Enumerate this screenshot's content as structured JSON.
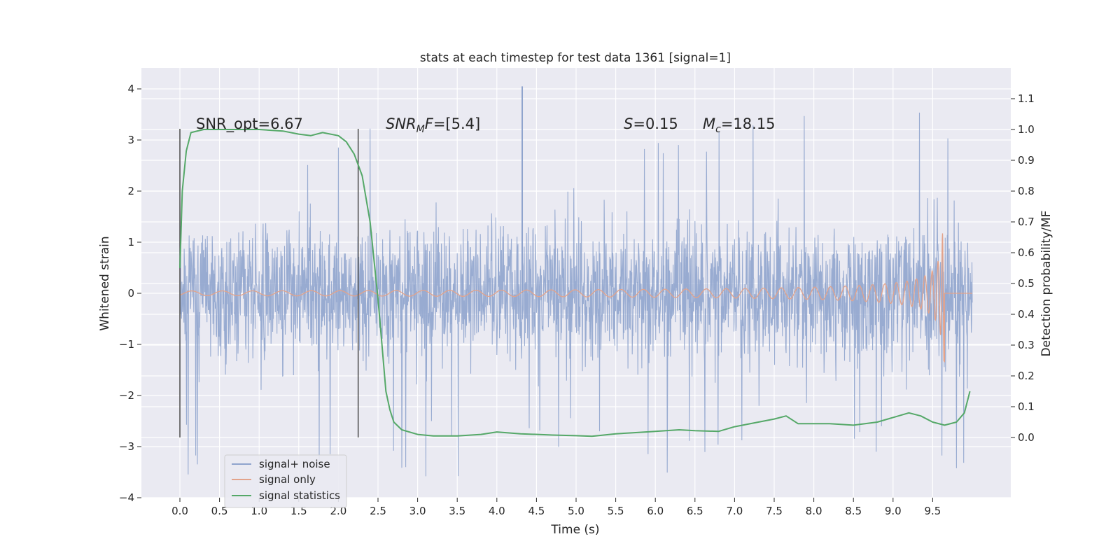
{
  "chart_data": {
    "type": "line",
    "title": "stats at each timestep for test data 1361 [signal=1]",
    "xlabel": "Time (s)",
    "ylabel": "Whitened strain",
    "ylabel_right": "Detection probability/MF",
    "xlim": [
      -0.5,
      10.5
    ],
    "ylim": [
      -4,
      4.4
    ],
    "ylim_right": [
      -0.2,
      1.19
    ],
    "xticks": [
      "0.0",
      "0.5",
      "1.0",
      "1.5",
      "2.0",
      "2.5",
      "3.0",
      "3.5",
      "4.0",
      "4.5",
      "5.0",
      "5.5",
      "6.0",
      "6.5",
      "7.0",
      "7.5",
      "8.0",
      "8.5",
      "9.0",
      "9.5"
    ],
    "yticks": [
      "4",
      "3",
      "2",
      "1",
      "0",
      "−1",
      "−2",
      "−3",
      "−4"
    ],
    "yticks_right": [
      "1.1",
      "1.0",
      "0.9",
      "0.8",
      "0.7",
      "0.6",
      "0.5",
      "0.4",
      "0.3",
      "0.2",
      "0.1",
      "0.0"
    ],
    "grid": true,
    "legend_position": "lower-left",
    "annotations": {
      "snr_opt": "SNR_opt=6.67",
      "snr_mf": "=[5.4]",
      "s_val": "=0.15",
      "mc_val": "=18.15"
    },
    "markers_x": [
      0.0,
      2.25
    ],
    "series": [
      {
        "name": "signal+ noise",
        "color": "#8fa4cd",
        "kind": "noise",
        "x_range": [
          0.0,
          10.0
        ],
        "typical_amplitude": 1.4,
        "max_peak": 4.05,
        "min_trough": -3.65
      },
      {
        "name": "signal only",
        "color": "#e3a38b",
        "kind": "chirp",
        "x_range": [
          0.0,
          9.65
        ],
        "peak_amplitude": 1.35
      },
      {
        "name": "signal statistics",
        "color": "#55a868",
        "axis": "right",
        "x": [
          0.0,
          0.03,
          0.08,
          0.14,
          0.3,
          0.6,
          1.0,
          1.3,
          1.5,
          1.65,
          1.8,
          2.0,
          2.1,
          2.2,
          2.3,
          2.4,
          2.5,
          2.55,
          2.6,
          2.65,
          2.7,
          2.8,
          3.0,
          3.2,
          3.5,
          3.8,
          4.0,
          4.3,
          4.7,
          5.0,
          5.2,
          5.5,
          5.7,
          6.0,
          6.3,
          6.5,
          6.8,
          7.0,
          7.3,
          7.5,
          7.65,
          7.8,
          8.0,
          8.2,
          8.5,
          8.8,
          9.0,
          9.2,
          9.35,
          9.5,
          9.65,
          9.8,
          9.9,
          9.97
        ],
        "y": [
          0.55,
          0.8,
          0.93,
          0.99,
          1.0,
          1.0,
          1.0,
          0.995,
          0.985,
          0.98,
          0.99,
          0.98,
          0.96,
          0.92,
          0.85,
          0.7,
          0.45,
          0.3,
          0.15,
          0.09,
          0.05,
          0.025,
          0.01,
          0.005,
          0.005,
          0.01,
          0.018,
          0.012,
          0.008,
          0.006,
          0.004,
          0.012,
          0.015,
          0.02,
          0.025,
          0.022,
          0.02,
          0.035,
          0.05,
          0.06,
          0.07,
          0.045,
          0.045,
          0.045,
          0.04,
          0.05,
          0.065,
          0.08,
          0.07,
          0.05,
          0.04,
          0.05,
          0.08,
          0.15
        ]
      }
    ]
  }
}
